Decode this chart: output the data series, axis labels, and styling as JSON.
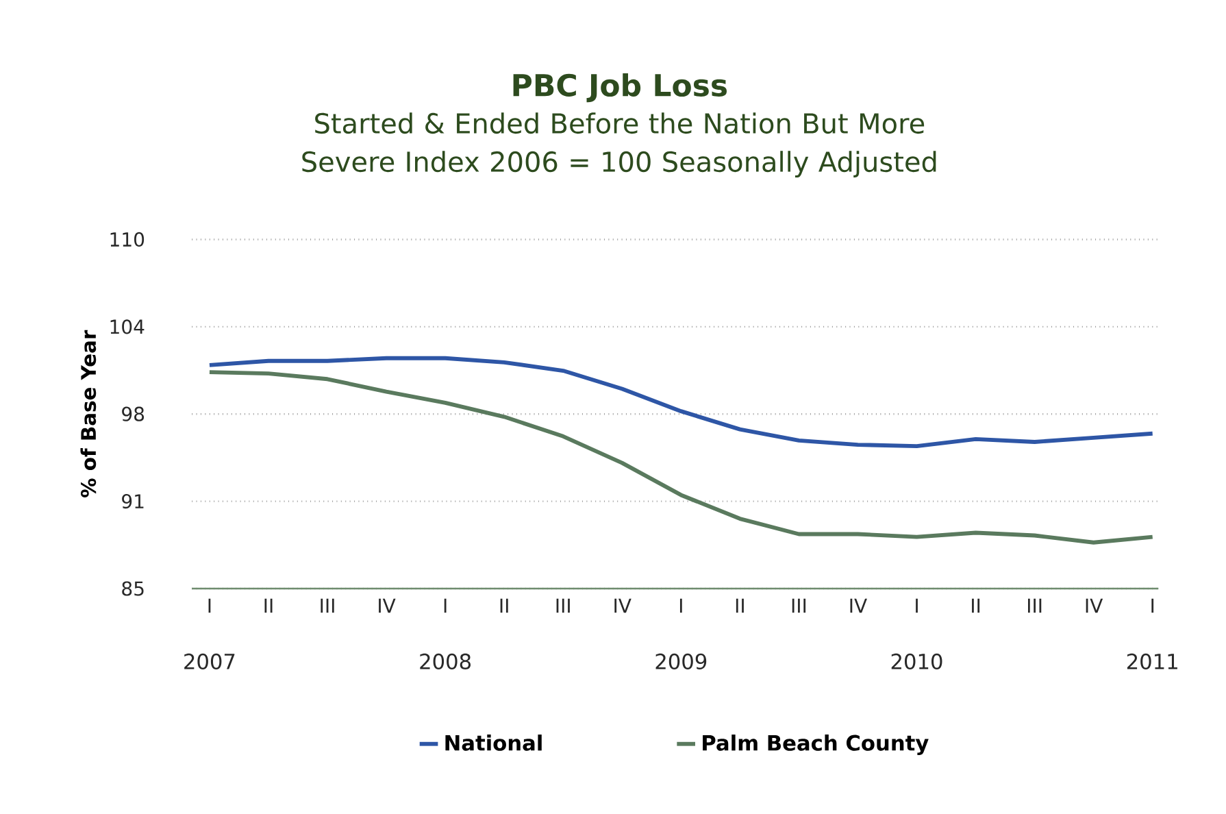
{
  "chart_data": {
    "type": "line",
    "title": "PBC Job Loss",
    "subtitle": "Started & Ended Before the Nation But More Severe Index 2006 = 100 Seasonally Adjusted",
    "annotations": [
      "2007",
      "2008",
      "2009",
      "2010",
      "2011"
    ],
    "ylabel": "% of Base Year",
    "categories": [
      "I",
      "II",
      "III",
      "IV",
      "I",
      "II",
      "III",
      "IV",
      "I",
      "II",
      "III",
      "IV",
      "I",
      "II",
      "III",
      "IV",
      "I"
    ],
    "ylim": [
      85,
      110
    ],
    "yticks": [
      85,
      {
        "value": 91.25,
        "label": "91"
      },
      {
        "value": 97.5,
        "label": "98"
      },
      {
        "value": 103.75,
        "label": "104"
      },
      110
    ],
    "grid": "y",
    "legend": "bottom",
    "series": [
      {
        "name": "National",
        "color": "#2e56a6",
        "values": [
          101.0,
          101.3,
          101.3,
          101.5,
          101.5,
          101.2,
          100.6,
          99.3,
          97.7,
          96.4,
          95.6,
          95.3,
          95.2,
          95.7,
          95.5,
          95.8,
          96.1
        ]
      },
      {
        "name": "Palm Beach County",
        "color": "#5a7a5e",
        "values": [
          100.5,
          100.4,
          100.0,
          99.1,
          98.3,
          97.3,
          95.9,
          94.0,
          91.7,
          90.0,
          88.9,
          88.9,
          88.7,
          89.0,
          88.8,
          88.3,
          88.7
        ]
      }
    ]
  }
}
